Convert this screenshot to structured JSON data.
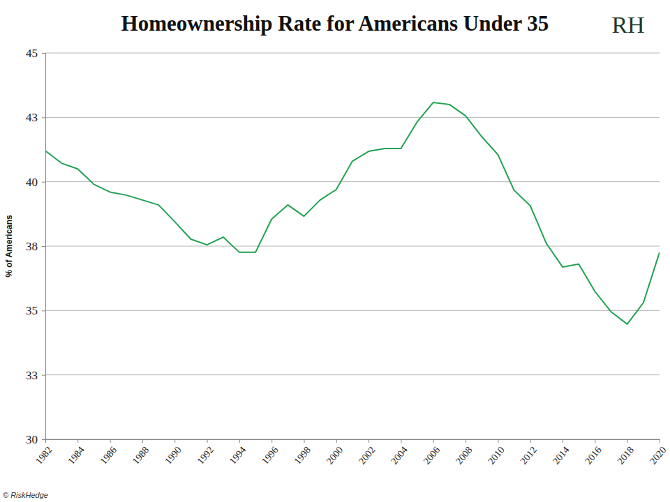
{
  "chart_data": {
    "type": "line",
    "title": "Homeownership Rate for Americans Under 35",
    "logo": "RH",
    "source": "© RiskHedge",
    "y_label": "% of Americans",
    "x": [
      1982,
      1983,
      1984,
      1985,
      1986,
      1987,
      1988,
      1989,
      1990,
      1991,
      1992,
      1993,
      1994,
      1995,
      1996,
      1997,
      1998,
      1999,
      2000,
      2001,
      2002,
      2003,
      2004,
      2005,
      2006,
      2007,
      2008,
      2009,
      2010,
      2011,
      2012,
      2013,
      2014,
      2015,
      2016,
      2017,
      2018,
      2019,
      2020
    ],
    "values": [
      41.2,
      40.72,
      40.5,
      39.9,
      39.6,
      39.48,
      39.29,
      39.1,
      38.45,
      37.77,
      37.55,
      37.85,
      37.26,
      37.26,
      38.55,
      39.1,
      38.66,
      39.29,
      39.7,
      40.8,
      41.18,
      41.29,
      41.29,
      42.32,
      43.08,
      43.0,
      42.56,
      41.75,
      41.05,
      39.67,
      39.07,
      37.6,
      36.69,
      36.8,
      35.74,
      34.95,
      34.47,
      35.3,
      37.26
    ],
    "color": "#21a152",
    "xlim": [
      1982,
      2020
    ],
    "xticks": [
      1982,
      1984,
      1986,
      1988,
      1990,
      1992,
      1994,
      1996,
      1998,
      2000,
      2002,
      2004,
      2006,
      2008,
      2010,
      2012,
      2014,
      2016,
      2018,
      2020
    ],
    "ylim": [
      30,
      45
    ],
    "yticks": [
      30,
      {
        "value": 32.5,
        "label": "33"
      },
      35,
      {
        "value": 37.5,
        "label": "38"
      },
      40,
      {
        "value": 42.5,
        "label": "43"
      },
      45
    ],
    "grid": true
  }
}
